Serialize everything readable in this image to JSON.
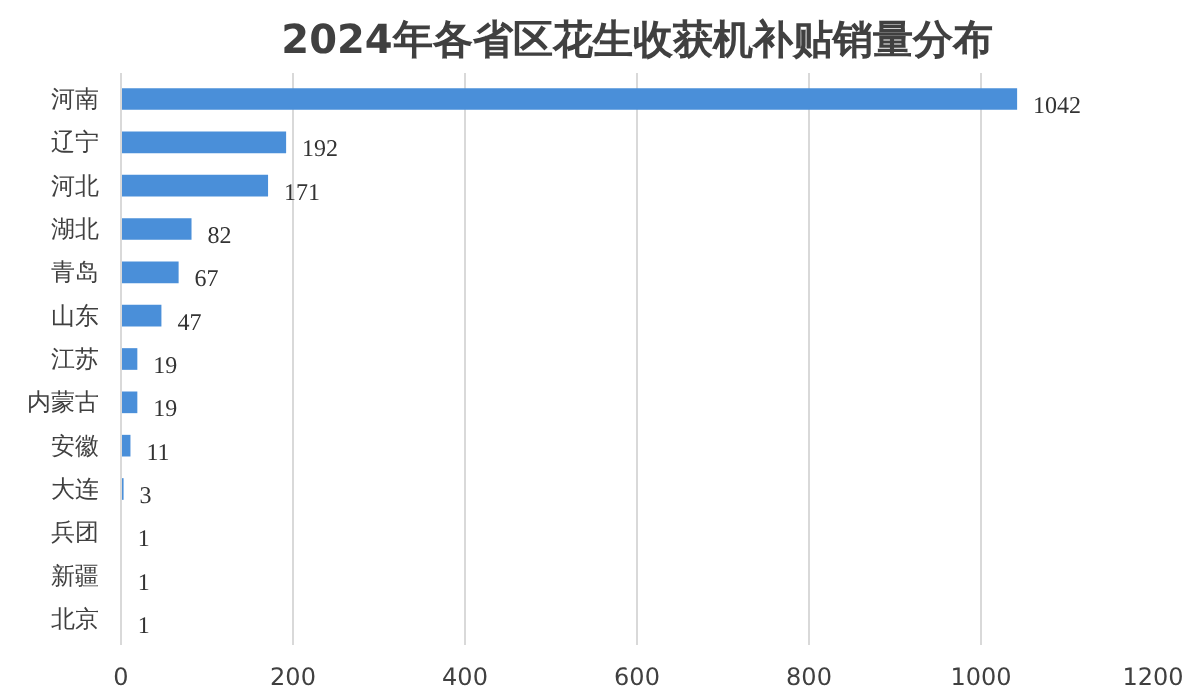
{
  "chart_data": {
    "type": "bar",
    "orientation": "horizontal",
    "title": "2024年各省区花生收获机补贴销量分布",
    "categories": [
      "河南",
      "辽宁",
      "河北",
      "湖北",
      "青岛",
      "山东",
      "江苏",
      "内蒙古",
      "安徽",
      "大连",
      "兵团",
      "新疆",
      "北京"
    ],
    "values": [
      1042,
      192,
      171,
      82,
      67,
      47,
      19,
      19,
      11,
      3,
      1,
      1,
      1
    ],
    "color": "#4a8fd9",
    "xlim": [
      0,
      1200
    ],
    "xticks": [
      0,
      200,
      400,
      600,
      800,
      1000,
      1200
    ],
    "grid": "x",
    "data_labels": true
  }
}
